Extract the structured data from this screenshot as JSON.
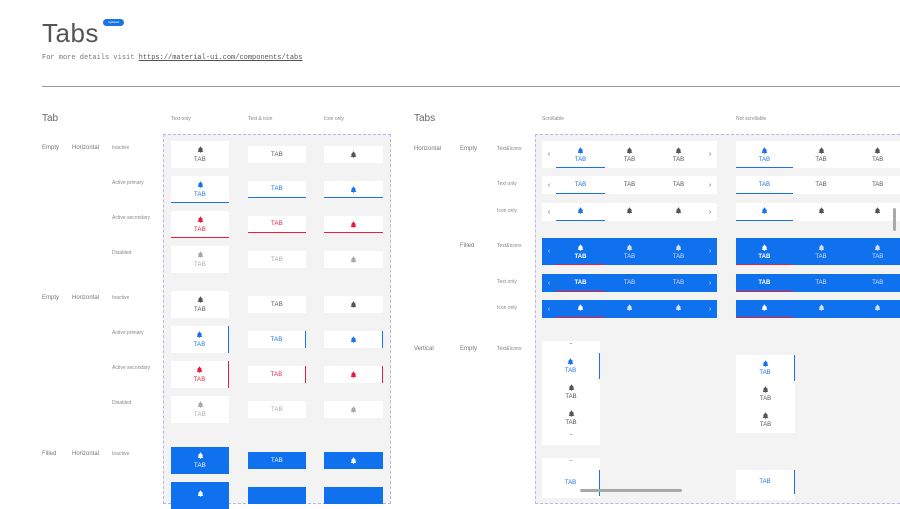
{
  "header": {
    "title": "Tabs",
    "badge": "Updated",
    "details_prefix": "For more details visit",
    "details_link": "https://material-ui.com/components/tabs"
  },
  "colors": {
    "primary": "#1a73e8",
    "secondary": "#e91e3e",
    "filled_bg": "#1071ee",
    "panel_bg": "#f3f3f3",
    "panel_border": "#b9b4ee",
    "disabled": "#aaaaaa"
  },
  "tab_label": "TAB",
  "icon": "bell-icon",
  "left": {
    "title": "Tab",
    "columns": [
      "Text only",
      "Text & icon",
      "Icon only"
    ],
    "groups": [
      {
        "fill": "Empty",
        "orientation": "Horizontal",
        "states": [
          "Inactive",
          "Active primary",
          "Active secondary",
          "Disabled"
        ]
      },
      {
        "fill": "Empty",
        "orientation": "Horizontal",
        "states": [
          "Inactive",
          "Active primary",
          "Active secondary",
          "Disabled"
        ]
      },
      {
        "fill": "Filled",
        "orientation": "Horizontal",
        "states": [
          "Inactive"
        ]
      }
    ]
  },
  "right": {
    "title": "Tabs",
    "columns": [
      "Scrollable",
      "Not scrollable"
    ],
    "rows": [
      {
        "orientation": "Horizontal",
        "fill": "Empty",
        "content": "Text&Icons"
      },
      {
        "orientation": "",
        "fill": "",
        "content": "Text only"
      },
      {
        "orientation": "",
        "fill": "",
        "content": "Icon only"
      },
      {
        "orientation": "",
        "fill": "Filled",
        "content": "Text&Icons"
      },
      {
        "orientation": "",
        "fill": "",
        "content": "Text only"
      },
      {
        "orientation": "",
        "fill": "",
        "content": "Icon only"
      },
      {
        "orientation": "Vertical",
        "fill": "Empty",
        "content": "Text&Icons"
      }
    ]
  }
}
